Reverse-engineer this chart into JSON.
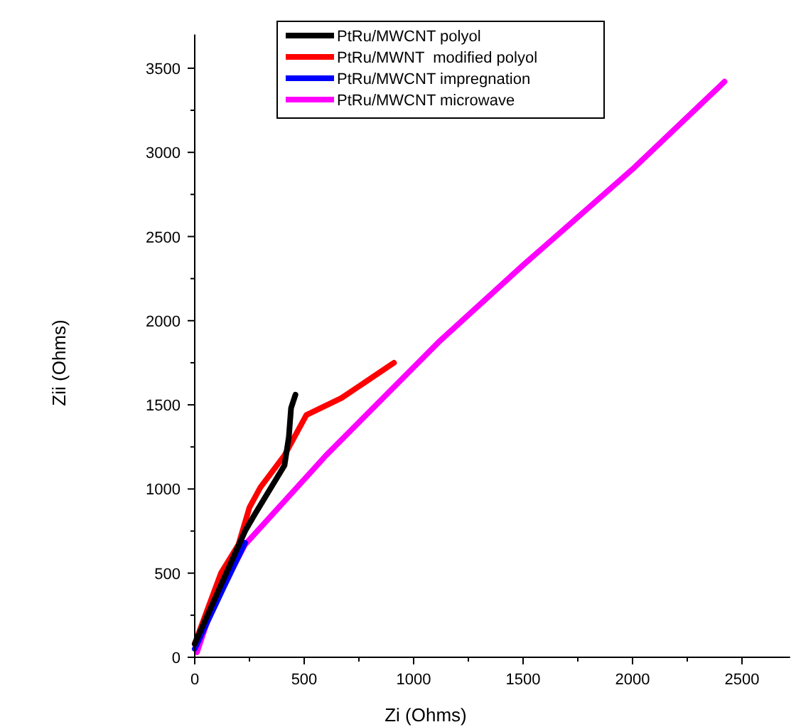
{
  "chart_data": {
    "type": "line",
    "xlabel": "Zi (Ohms)",
    "ylabel": "Zii (Ohms)",
    "xlim": [
      0,
      2720
    ],
    "ylim": [
      0,
      3700
    ],
    "xticks": [
      0,
      {
        "value": 250,
        "label": null
      },
      500,
      {
        "value": 750,
        "label": null
      },
      1000,
      {
        "value": 1250,
        "label": null
      },
      1500,
      {
        "value": 1750,
        "label": null
      },
      2000,
      {
        "value": 2250,
        "label": null
      },
      2500
    ],
    "yticks": [
      0,
      {
        "value": 250,
        "label": null
      },
      500,
      {
        "value": 750,
        "label": null
      },
      1000,
      {
        "value": 1250,
        "label": null
      },
      1500,
      {
        "value": 1750,
        "label": null
      },
      2000,
      {
        "value": 2250,
        "label": null
      },
      2500,
      {
        "value": 2750,
        "label": null
      },
      3000,
      {
        "value": 3250,
        "label": null
      },
      3500
    ],
    "grid": false,
    "legend": "top",
    "marker": "none",
    "line_style": "solid",
    "series": [
      {
        "name": "PtRu/MWCNT polyol",
        "color": "#000000",
        "x": [
          0,
          230,
          270,
          410,
          430,
          440,
          460
        ],
        "values": [
          80,
          750,
          840,
          1140,
          1310,
          1480,
          1560
        ]
      },
      {
        "name": "PtRu/MWNT  modified polyol",
        "color": "#ff0000",
        "x": [
          0,
          120,
          200,
          250,
          300,
          410,
          510,
          670,
          910
        ],
        "values": [
          80,
          500,
          670,
          890,
          1010,
          1200,
          1440,
          1540,
          1750
        ]
      },
      {
        "name": "PtRu/MWCNT impregnation",
        "color": "#0000ff",
        "x": [
          0,
          130,
          230
        ],
        "values": [
          50,
          410,
          680
        ]
      },
      {
        "name": "PtRu/MWCNT microwave",
        "color": "#ff00ff",
        "x": [
          10,
          80,
          230,
          600,
          1120,
          1500,
          2000,
          2420
        ],
        "values": [
          30,
          300,
          670,
          1200,
          1880,
          2330,
          2900,
          3420
        ]
      }
    ]
  }
}
